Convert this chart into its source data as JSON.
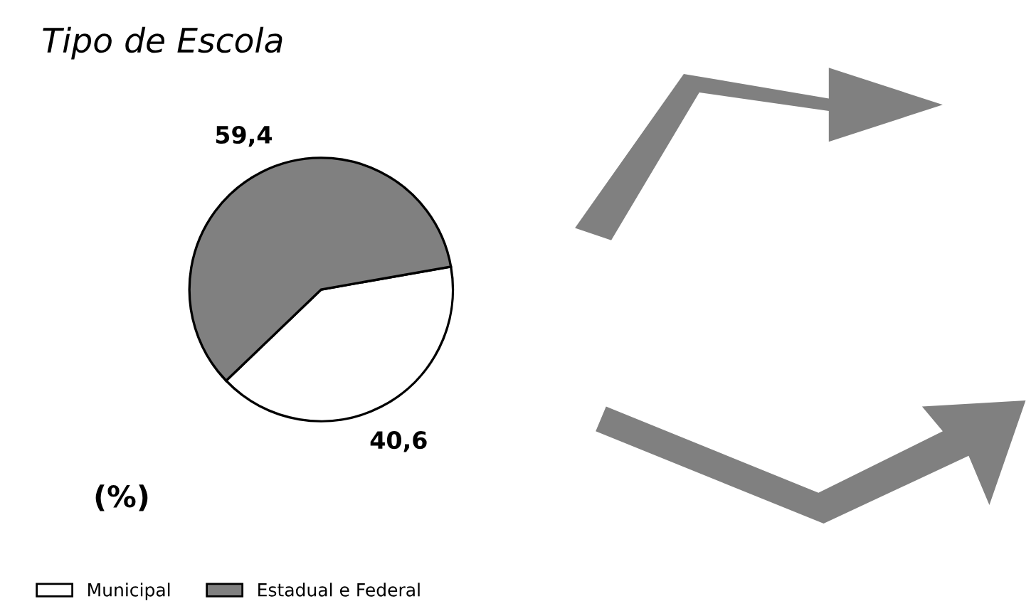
{
  "chart_data": {
    "type": "pie",
    "title": "Tipo de Escola",
    "categories": [
      "Municipal",
      "Estadual e Federal"
    ],
    "values": [
      40.6,
      59.4
    ],
    "colors": [
      "#ffffff",
      "#808080"
    ],
    "value_labels": [
      "40,6",
      "59,4"
    ],
    "annotations": [
      "(%)"
    ],
    "legend": "bottom left"
  }
}
